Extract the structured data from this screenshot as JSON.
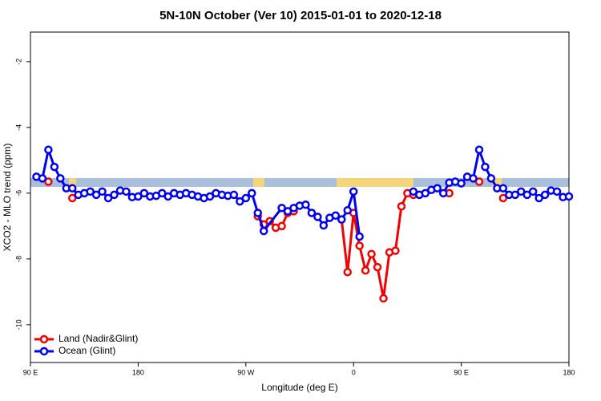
{
  "chart_data": {
    "type": "line",
    "title": "5N-10N October (Ver 10)   2015-01-01 to 2020-12-18",
    "x_label": "Longitude (deg E)",
    "y_label": "XCO2 - MLO trend (ppm)",
    "xlim": [
      90,
      540
    ],
    "xticks": [
      {
        "value": 90,
        "label": "90 E"
      },
      {
        "value": 180,
        "label": "180"
      },
      {
        "value": 270,
        "label": "90 W"
      },
      {
        "value": 360,
        "label": "0"
      },
      {
        "value": 450,
        "label": "90 E"
      },
      {
        "value": 540,
        "label": "180"
      }
    ],
    "ylim": [
      -11.15,
      -1.1
    ],
    "yticks": [
      -10,
      -8,
      -6,
      -4,
      -2
    ],
    "legend": "bottom-left",
    "series": [
      {
        "name": "Land (Nadir&Glint)",
        "color": "#ee0000",
        "x": [
          105,
          110,
          125,
          130,
          280,
          285,
          290,
          295,
          300,
          305,
          310,
          315,
          350,
          355,
          360,
          365,
          370,
          375,
          380,
          385,
          390,
          395,
          400,
          405,
          410,
          415,
          420,
          440,
          445,
          465,
          470,
          485
        ],
        "values": [
          -5.65,
          null,
          -6.15,
          null,
          -6.7,
          -6.95,
          -6.85,
          -7.05,
          -7.0,
          -6.6,
          -6.55,
          null,
          -6.8,
          -8.4,
          -6.6,
          -7.6,
          -8.35,
          -7.85,
          -8.25,
          -9.2,
          -7.8,
          -7.75,
          -6.4,
          -6.0,
          -6.05,
          -6.05,
          null,
          -6.0,
          null,
          -5.65,
          null,
          -6.15
        ]
      },
      {
        "name": "Ocean (Glint)",
        "color": "#0000ee",
        "x": [
          95,
          100,
          105,
          110,
          115,
          120,
          125,
          130,
          135,
          140,
          145,
          150,
          155,
          160,
          165,
          170,
          175,
          180,
          185,
          190,
          195,
          200,
          205,
          210,
          215,
          220,
          225,
          230,
          235,
          240,
          245,
          250,
          255,
          260,
          265,
          270,
          275,
          280,
          285,
          300,
          305,
          310,
          315,
          320,
          325,
          330,
          335,
          340,
          345,
          350,
          355,
          360,
          365,
          370,
          410,
          415,
          420,
          425,
          430,
          435,
          440,
          445,
          450,
          455,
          460,
          465,
          470,
          475,
          480,
          485,
          490,
          495,
          500,
          505,
          510,
          515,
          520,
          525,
          530,
          535,
          540
        ],
        "values": [
          -5.5,
          -5.55,
          -4.68,
          -5.2,
          -5.55,
          -5.85,
          -5.85,
          -6.05,
          -6.0,
          -5.95,
          -6.05,
          -5.95,
          -6.15,
          -6.05,
          -5.92,
          -5.95,
          -6.12,
          -6.1,
          -6.0,
          -6.1,
          -6.08,
          -6.0,
          -6.1,
          -6.0,
          -6.05,
          -6.0,
          -6.05,
          -6.1,
          -6.15,
          -6.1,
          -6.0,
          -6.05,
          -6.08,
          -6.05,
          -6.25,
          -6.15,
          -6.0,
          -6.6,
          -7.15,
          -6.45,
          -6.55,
          -6.45,
          -6.38,
          -6.35,
          -6.6,
          -6.72,
          -6.98,
          -6.75,
          -6.68,
          -6.8,
          -6.52,
          -5.95,
          -7.32,
          null,
          -5.95,
          -6.05,
          -6.0,
          -5.9,
          -5.85,
          -6.0,
          -5.68,
          -5.65,
          -5.7,
          -5.5,
          -5.55,
          -4.68,
          -5.2,
          -5.55,
          -5.85,
          -5.85,
          -6.05,
          -6.05,
          -5.95,
          -6.05,
          -5.95,
          -6.15,
          -6.05,
          -5.92,
          -5.95,
          -6.12,
          -6.1
        ]
      }
    ]
  }
}
